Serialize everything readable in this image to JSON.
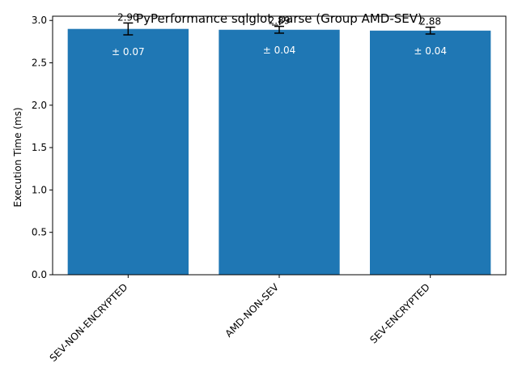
{
  "chart_data": {
    "type": "bar",
    "title": "PyPerformance sqlglot_parse (Group AMD-SEV)",
    "xlabel": "",
    "ylabel": "Execution Time (ms)",
    "categories": [
      "SEV-NON-ENCRYPTED",
      "AMD-NON-SEV",
      "SEV-ENCRYPTED"
    ],
    "values": [
      2.9,
      2.89,
      2.88
    ],
    "value_labels": [
      "2.90",
      "2.89",
      "2.88"
    ],
    "errors": [
      0.07,
      0.04,
      0.04
    ],
    "error_labels": [
      "± 0.07",
      "± 0.04",
      "± 0.04"
    ],
    "ylim": [
      0,
      3.05
    ],
    "yticks": [
      0.0,
      0.5,
      1.0,
      1.5,
      2.0,
      2.5,
      3.0
    ],
    "ytick_labels": [
      "0.0",
      "0.5",
      "1.0",
      "1.5",
      "2.0",
      "2.5",
      "3.0"
    ],
    "grid": false,
    "legend": "none",
    "bar_color": "#1f77b4"
  }
}
